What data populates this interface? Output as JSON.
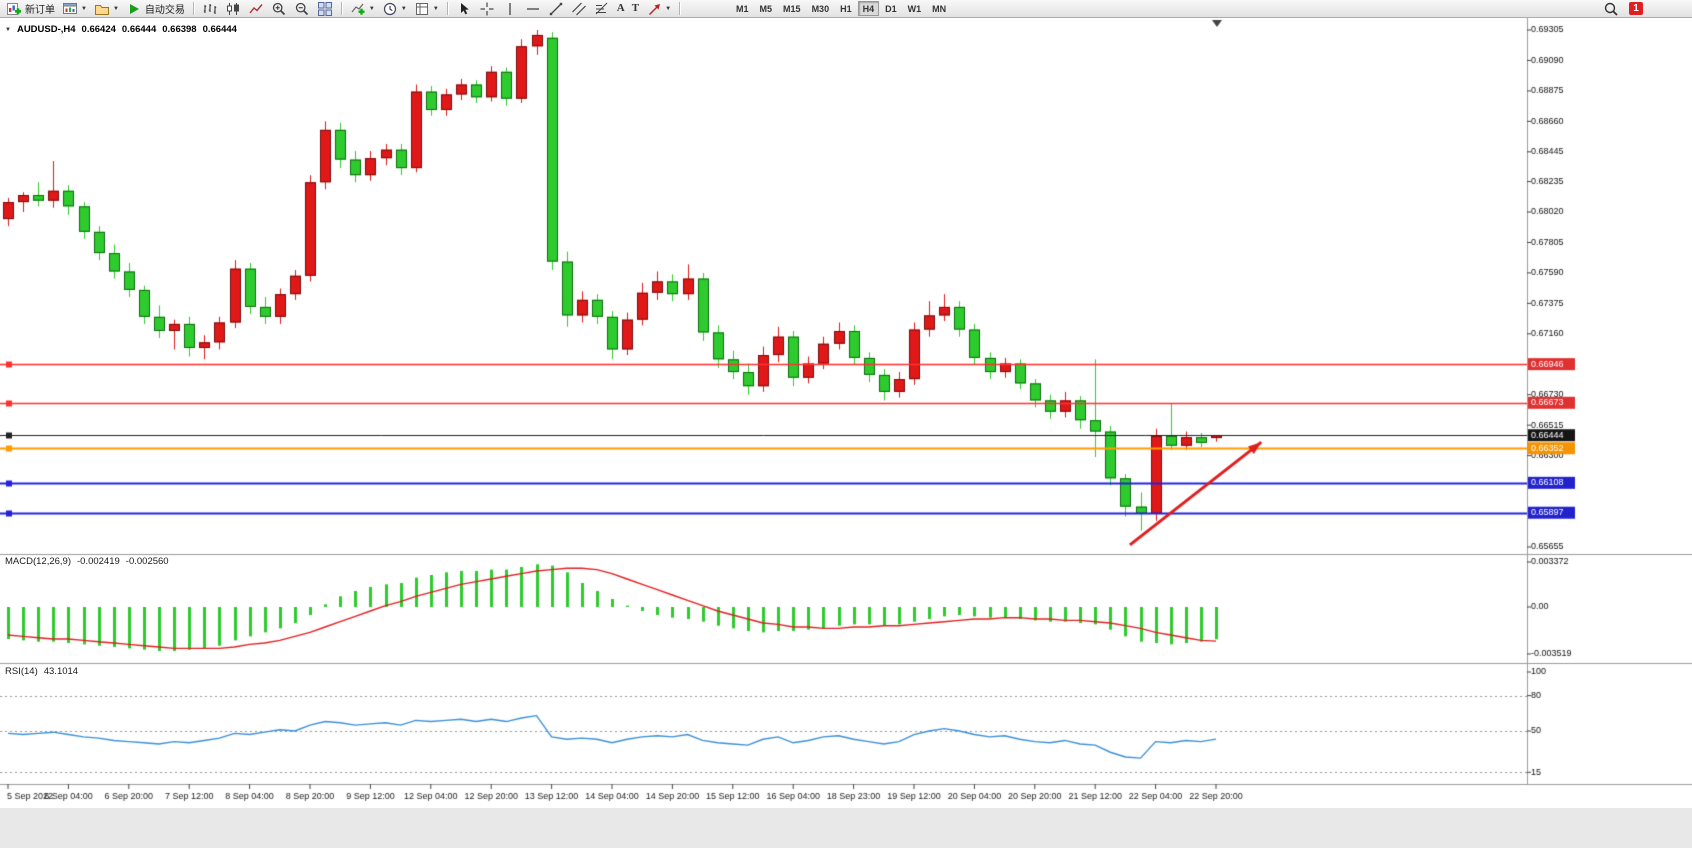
{
  "toolbar": {
    "new_order_label": "新订单",
    "auto_trading_label": "自动交易",
    "caret": "▼",
    "glyph_a": "A",
    "glyph_t": "T",
    "timeframes": [
      "M1",
      "M5",
      "M15",
      "M30",
      "H1",
      "H4",
      "D1",
      "W1",
      "MN"
    ],
    "active_timeframe": "H4",
    "badge_count": "1"
  },
  "chart_header": {
    "caret": "▼",
    "symbol": "AUDUSD-,H4",
    "open": "0.66424",
    "high": "0.66444",
    "low": "0.66398",
    "close": "0.66444"
  },
  "panes": {
    "macd": {
      "name": "MACD(12,26,9)",
      "main_value": "-0.002419",
      "signal_value": "-0.002560"
    },
    "rsi": {
      "name": "RSI(14)",
      "value": "43.1014"
    }
  },
  "chart_data": [
    {
      "type": "candlestick",
      "title": "AUDUSD-,H4",
      "up_color": "#e01818",
      "down_color": "#2ecb2e",
      "ylim": [
        0.65655,
        0.69305
      ],
      "label_every": 4,
      "y_ticks": [
        {
          "price": 0.69305,
          "label": "0.69305"
        },
        {
          "price": 0.6909,
          "label": "0.69090"
        },
        {
          "price": 0.68875,
          "label": "0.68875"
        },
        {
          "price": 0.6866,
          "label": "0.68660"
        },
        {
          "price": 0.68445,
          "label": "0.68445"
        },
        {
          "price": 0.68235,
          "label": "0.68235"
        },
        {
          "price": 0.6802,
          "label": "0.68020"
        },
        {
          "price": 0.67805,
          "label": "0.67805"
        },
        {
          "price": 0.6759,
          "label": "0.67590"
        },
        {
          "price": 0.67375,
          "label": "0.67375"
        },
        {
          "price": 0.6716,
          "label": "0.67160"
        },
        {
          "price": 0.6673,
          "label": "0.66730"
        },
        {
          "price": 0.66515,
          "label": "0.66515"
        },
        {
          "price": 0.663,
          "label": "0.66300"
        },
        {
          "price": 0.65655,
          "label": "0.65655"
        }
      ],
      "x_labels": [
        "5 Sep 2022",
        "6 Sep 04:00",
        "6 Sep 20:00",
        "7 Sep 12:00",
        "8 Sep 04:00",
        "8 Sep 20:00",
        "9 Sep 12:00",
        "12 Sep 04:00",
        "12 Sep 20:00",
        "13 Sep 12:00",
        "14 Sep 04:00",
        "14 Sep 20:00",
        "15 Sep 12:00",
        "16 Sep 04:00",
        "18 Sep 23:00",
        "19 Sep 12:00",
        "20 Sep 04:00",
        "20 Sep 20:00",
        "21 Sep 12:00",
        "22 Sep 04:00",
        "22 Sep 20:00"
      ],
      "hlines": [
        {
          "price": 0.66946,
          "label": "0.66946",
          "color": "#ff3030",
          "width": 1.5,
          "tag_bg": "#e03030"
        },
        {
          "price": 0.66673,
          "label": "0.66673",
          "color": "#ff3030",
          "width": 1.5,
          "tag_bg": "#e03030"
        },
        {
          "price": 0.66444,
          "label": "0.66444",
          "color": "#222222",
          "width": 1,
          "tag_bg": "#151515"
        },
        {
          "price": 0.66352,
          "label": "0.66352",
          "color": "#ff9c00",
          "width": 2,
          "tag_bg": "#f59300"
        },
        {
          "price": 0.66108,
          "label": "0.66108",
          "color": "#2222dd",
          "width": 2,
          "tag_bg": "#2222cc"
        },
        {
          "price": 0.65897,
          "label": "0.65897",
          "color": "#2222dd",
          "width": 2,
          "tag_bg": "#2222cc"
        }
      ],
      "arrow": {
        "from_index": 74.3,
        "from_price": 0.6567,
        "to_index": 83,
        "to_price": 0.66395,
        "color": "#e01e1e"
      },
      "ohlc": [
        [
          0.6797,
          0.6812,
          0.6792,
          0.6809
        ],
        [
          0.6809,
          0.6816,
          0.6802,
          0.6814
        ],
        [
          0.6814,
          0.6823,
          0.6806,
          0.681
        ],
        [
          0.681,
          0.6838,
          0.6805,
          0.6817
        ],
        [
          0.6817,
          0.6821,
          0.68,
          0.6806
        ],
        [
          0.6806,
          0.6809,
          0.6783,
          0.6788
        ],
        [
          0.6788,
          0.6792,
          0.6768,
          0.6773
        ],
        [
          0.6773,
          0.6779,
          0.6755,
          0.676
        ],
        [
          0.676,
          0.6766,
          0.6742,
          0.6747
        ],
        [
          0.6747,
          0.675,
          0.6723,
          0.6728
        ],
        [
          0.6728,
          0.6736,
          0.6713,
          0.6718
        ],
        [
          0.6718,
          0.6726,
          0.6705,
          0.6723
        ],
        [
          0.6723,
          0.6728,
          0.67,
          0.6706
        ],
        [
          0.6706,
          0.6715,
          0.6698,
          0.671
        ],
        [
          0.671,
          0.6728,
          0.6705,
          0.6724
        ],
        [
          0.6724,
          0.6768,
          0.672,
          0.6762
        ],
        [
          0.6762,
          0.6766,
          0.673,
          0.6735
        ],
        [
          0.6735,
          0.6742,
          0.6723,
          0.6728
        ],
        [
          0.6728,
          0.6748,
          0.6723,
          0.6744
        ],
        [
          0.6744,
          0.6761,
          0.674,
          0.6757
        ],
        [
          0.6757,
          0.6828,
          0.6753,
          0.6823
        ],
        [
          0.6823,
          0.6866,
          0.6818,
          0.686
        ],
        [
          0.686,
          0.6865,
          0.6833,
          0.6839
        ],
        [
          0.6839,
          0.6845,
          0.6823,
          0.6828
        ],
        [
          0.6828,
          0.6845,
          0.6824,
          0.684
        ],
        [
          0.684,
          0.685,
          0.6835,
          0.6846
        ],
        [
          0.6846,
          0.685,
          0.6828,
          0.6833
        ],
        [
          0.6833,
          0.6892,
          0.683,
          0.6887
        ],
        [
          0.6887,
          0.6891,
          0.687,
          0.6874
        ],
        [
          0.6874,
          0.6889,
          0.687,
          0.6885
        ],
        [
          0.6885,
          0.6896,
          0.6881,
          0.6892
        ],
        [
          0.6892,
          0.6895,
          0.6879,
          0.6883
        ],
        [
          0.6883,
          0.6905,
          0.688,
          0.6901
        ],
        [
          0.6901,
          0.6904,
          0.6877,
          0.6882
        ],
        [
          0.6882,
          0.6924,
          0.6879,
          0.6919
        ],
        [
          0.6919,
          0.69305,
          0.6913,
          0.6927
        ],
        [
          0.6925,
          0.6929,
          0.6761,
          0.6767
        ],
        [
          0.6767,
          0.6774,
          0.6721,
          0.6729
        ],
        [
          0.6729,
          0.6746,
          0.6724,
          0.674
        ],
        [
          0.674,
          0.6744,
          0.6723,
          0.6728
        ],
        [
          0.6728,
          0.6732,
          0.6698,
          0.6705
        ],
        [
          0.6705,
          0.6731,
          0.6701,
          0.6726
        ],
        [
          0.6726,
          0.6752,
          0.6722,
          0.6745
        ],
        [
          0.6745,
          0.676,
          0.674,
          0.6753
        ],
        [
          0.6753,
          0.6758,
          0.6739,
          0.6744
        ],
        [
          0.6744,
          0.6765,
          0.674,
          0.6755
        ],
        [
          0.6755,
          0.6759,
          0.6711,
          0.6717
        ],
        [
          0.6717,
          0.6722,
          0.6692,
          0.6698
        ],
        [
          0.6698,
          0.6704,
          0.6684,
          0.6689
        ],
        [
          0.6689,
          0.6695,
          0.6673,
          0.6679
        ],
        [
          0.6679,
          0.6707,
          0.6675,
          0.6701
        ],
        [
          0.6701,
          0.6721,
          0.6696,
          0.6714
        ],
        [
          0.6714,
          0.6718,
          0.6679,
          0.6685
        ],
        [
          0.6685,
          0.67,
          0.6681,
          0.6695
        ],
        [
          0.6695,
          0.6714,
          0.6691,
          0.6709
        ],
        [
          0.6709,
          0.6724,
          0.6705,
          0.6718
        ],
        [
          0.6718,
          0.6722,
          0.6694,
          0.6699
        ],
        [
          0.6699,
          0.6703,
          0.6682,
          0.6687
        ],
        [
          0.6687,
          0.6691,
          0.6669,
          0.6675
        ],
        [
          0.6675,
          0.6689,
          0.6671,
          0.6684
        ],
        [
          0.6684,
          0.6724,
          0.668,
          0.6719
        ],
        [
          0.6719,
          0.6739,
          0.6714,
          0.6729
        ],
        [
          0.6729,
          0.6744,
          0.6725,
          0.6735
        ],
        [
          0.6735,
          0.6739,
          0.6714,
          0.6719
        ],
        [
          0.6719,
          0.6723,
          0.6694,
          0.6699
        ],
        [
          0.6699,
          0.6703,
          0.6684,
          0.6689
        ],
        [
          0.6689,
          0.6699,
          0.6685,
          0.6695
        ],
        [
          0.6695,
          0.6698,
          0.6677,
          0.6681
        ],
        [
          0.6681,
          0.6684,
          0.6664,
          0.6669
        ],
        [
          0.6669,
          0.6673,
          0.6656,
          0.6661
        ],
        [
          0.6661,
          0.6675,
          0.6657,
          0.6669
        ],
        [
          0.6669,
          0.6672,
          0.6649,
          0.6655
        ],
        [
          0.6655,
          0.6698,
          0.6629,
          0.6647
        ],
        [
          0.6647,
          0.6651,
          0.6609,
          0.6614
        ],
        [
          0.6614,
          0.6617,
          0.6587,
          0.6594
        ],
        [
          0.6594,
          0.6604,
          0.6577,
          0.6589
        ],
        [
          0.6589,
          0.6649,
          0.6584,
          0.6644
        ],
        [
          0.6644,
          0.6667,
          0.6634,
          0.6637
        ],
        [
          0.6637,
          0.6647,
          0.6634,
          0.6643
        ],
        [
          0.6643,
          0.6646,
          0.6636,
          0.6639
        ],
        [
          0.66424,
          0.66444,
          0.66398,
          0.66444
        ]
      ]
    },
    {
      "type": "bar",
      "title": "MACD(12,26,9)",
      "bar_color": "#2ecb2e",
      "signal_color": "#e02020",
      "ylim": [
        -0.003519,
        0.003372
      ],
      "y_ticks": [
        {
          "v": 0.003372,
          "label": "0.003372"
        },
        {
          "v": 0,
          "label": "0.00"
        },
        {
          "v": -0.003519,
          "label": "-0.003519"
        }
      ],
      "values": [
        -0.0024,
        -0.0025,
        -0.0026,
        -0.0026,
        -0.0027,
        -0.0028,
        -0.0029,
        -0.003,
        -0.0031,
        -0.0032,
        -0.0033,
        -0.0033,
        -0.0032,
        -0.0031,
        -0.0029,
        -0.0025,
        -0.0022,
        -0.0019,
        -0.0016,
        -0.0012,
        -0.0006,
        0.0002,
        0.0008,
        0.0012,
        0.0015,
        0.0017,
        0.0018,
        0.0022,
        0.0024,
        0.0026,
        0.0027,
        0.0027,
        0.0028,
        0.0028,
        0.003,
        0.0032,
        0.0031,
        0.0026,
        0.0018,
        0.0012,
        0.0006,
        0.0001,
        -0.0003,
        -0.0006,
        -0.0008,
        -0.0009,
        -0.0011,
        -0.0014,
        -0.0016,
        -0.0018,
        -0.0019,
        -0.0018,
        -0.0018,
        -0.0017,
        -0.0016,
        -0.0014,
        -0.0013,
        -0.0013,
        -0.0014,
        -0.0013,
        -0.0011,
        -0.0009,
        -0.0007,
        -0.0006,
        -0.0007,
        -0.0008,
        -0.0008,
        -0.0009,
        -0.001,
        -0.0011,
        -0.0011,
        -0.0012,
        -0.0013,
        -0.0017,
        -0.0022,
        -0.0026,
        -0.0027,
        -0.0028,
        -0.0027,
        -0.0026,
        -0.002419
      ],
      "signal": [
        -0.0021,
        -0.0022,
        -0.0023,
        -0.0024,
        -0.0024,
        -0.0025,
        -0.0026,
        -0.0027,
        -0.0028,
        -0.0029,
        -0.003,
        -0.0031,
        -0.0031,
        -0.0031,
        -0.0031,
        -0.003,
        -0.0028,
        -0.0027,
        -0.0025,
        -0.0022,
        -0.0019,
        -0.0015,
        -0.0011,
        -0.0007,
        -0.0003,
        0.0001,
        0.0004,
        0.0008,
        0.0011,
        0.0014,
        0.0017,
        0.0019,
        0.0021,
        0.0023,
        0.0025,
        0.0027,
        0.0028,
        0.0029,
        0.0029,
        0.0028,
        0.0025,
        0.0021,
        0.0017,
        0.0013,
        0.0009,
        0.0005,
        0.0001,
        -0.0003,
        -0.0006,
        -0.0009,
        -0.0012,
        -0.0013,
        -0.0015,
        -0.0015,
        -0.0016,
        -0.0016,
        -0.0015,
        -0.0015,
        -0.0014,
        -0.0014,
        -0.0013,
        -0.0012,
        -0.0011,
        -0.001,
        -0.0009,
        -0.0009,
        -0.0008,
        -0.0008,
        -0.0009,
        -0.0009,
        -0.001,
        -0.001,
        -0.0011,
        -0.0012,
        -0.0014,
        -0.0016,
        -0.0019,
        -0.0021,
        -0.0023,
        -0.0025,
        -0.00256
      ]
    },
    {
      "type": "line",
      "title": "RSI(14)",
      "line_color": "#3b8fd8",
      "ylim": [
        6,
        100
      ],
      "levels": [
        80,
        50,
        15
      ],
      "y_ticks": [
        {
          "v": 100,
          "label": "100"
        },
        {
          "v": 80,
          "label": "80"
        },
        {
          "v": 50,
          "label": "50"
        },
        {
          "v": 15,
          "label": "15"
        }
      ],
      "values": [
        48,
        47,
        48,
        49,
        47,
        45,
        44,
        42,
        41,
        40,
        39,
        41,
        40,
        42,
        44,
        48,
        47,
        49,
        51,
        50,
        55,
        58,
        57,
        55,
        56,
        57,
        55,
        59,
        58,
        59,
        60,
        58,
        60,
        58,
        61,
        63,
        45,
        43,
        44,
        43,
        40,
        43,
        45,
        46,
        45,
        47,
        42,
        40,
        39,
        38,
        43,
        45,
        40,
        42,
        45,
        46,
        43,
        41,
        39,
        41,
        47,
        50,
        52,
        50,
        47,
        45,
        46,
        43,
        41,
        40,
        42,
        39,
        38,
        32,
        28,
        27,
        41,
        40,
        42,
        41,
        43.1
      ]
    }
  ]
}
